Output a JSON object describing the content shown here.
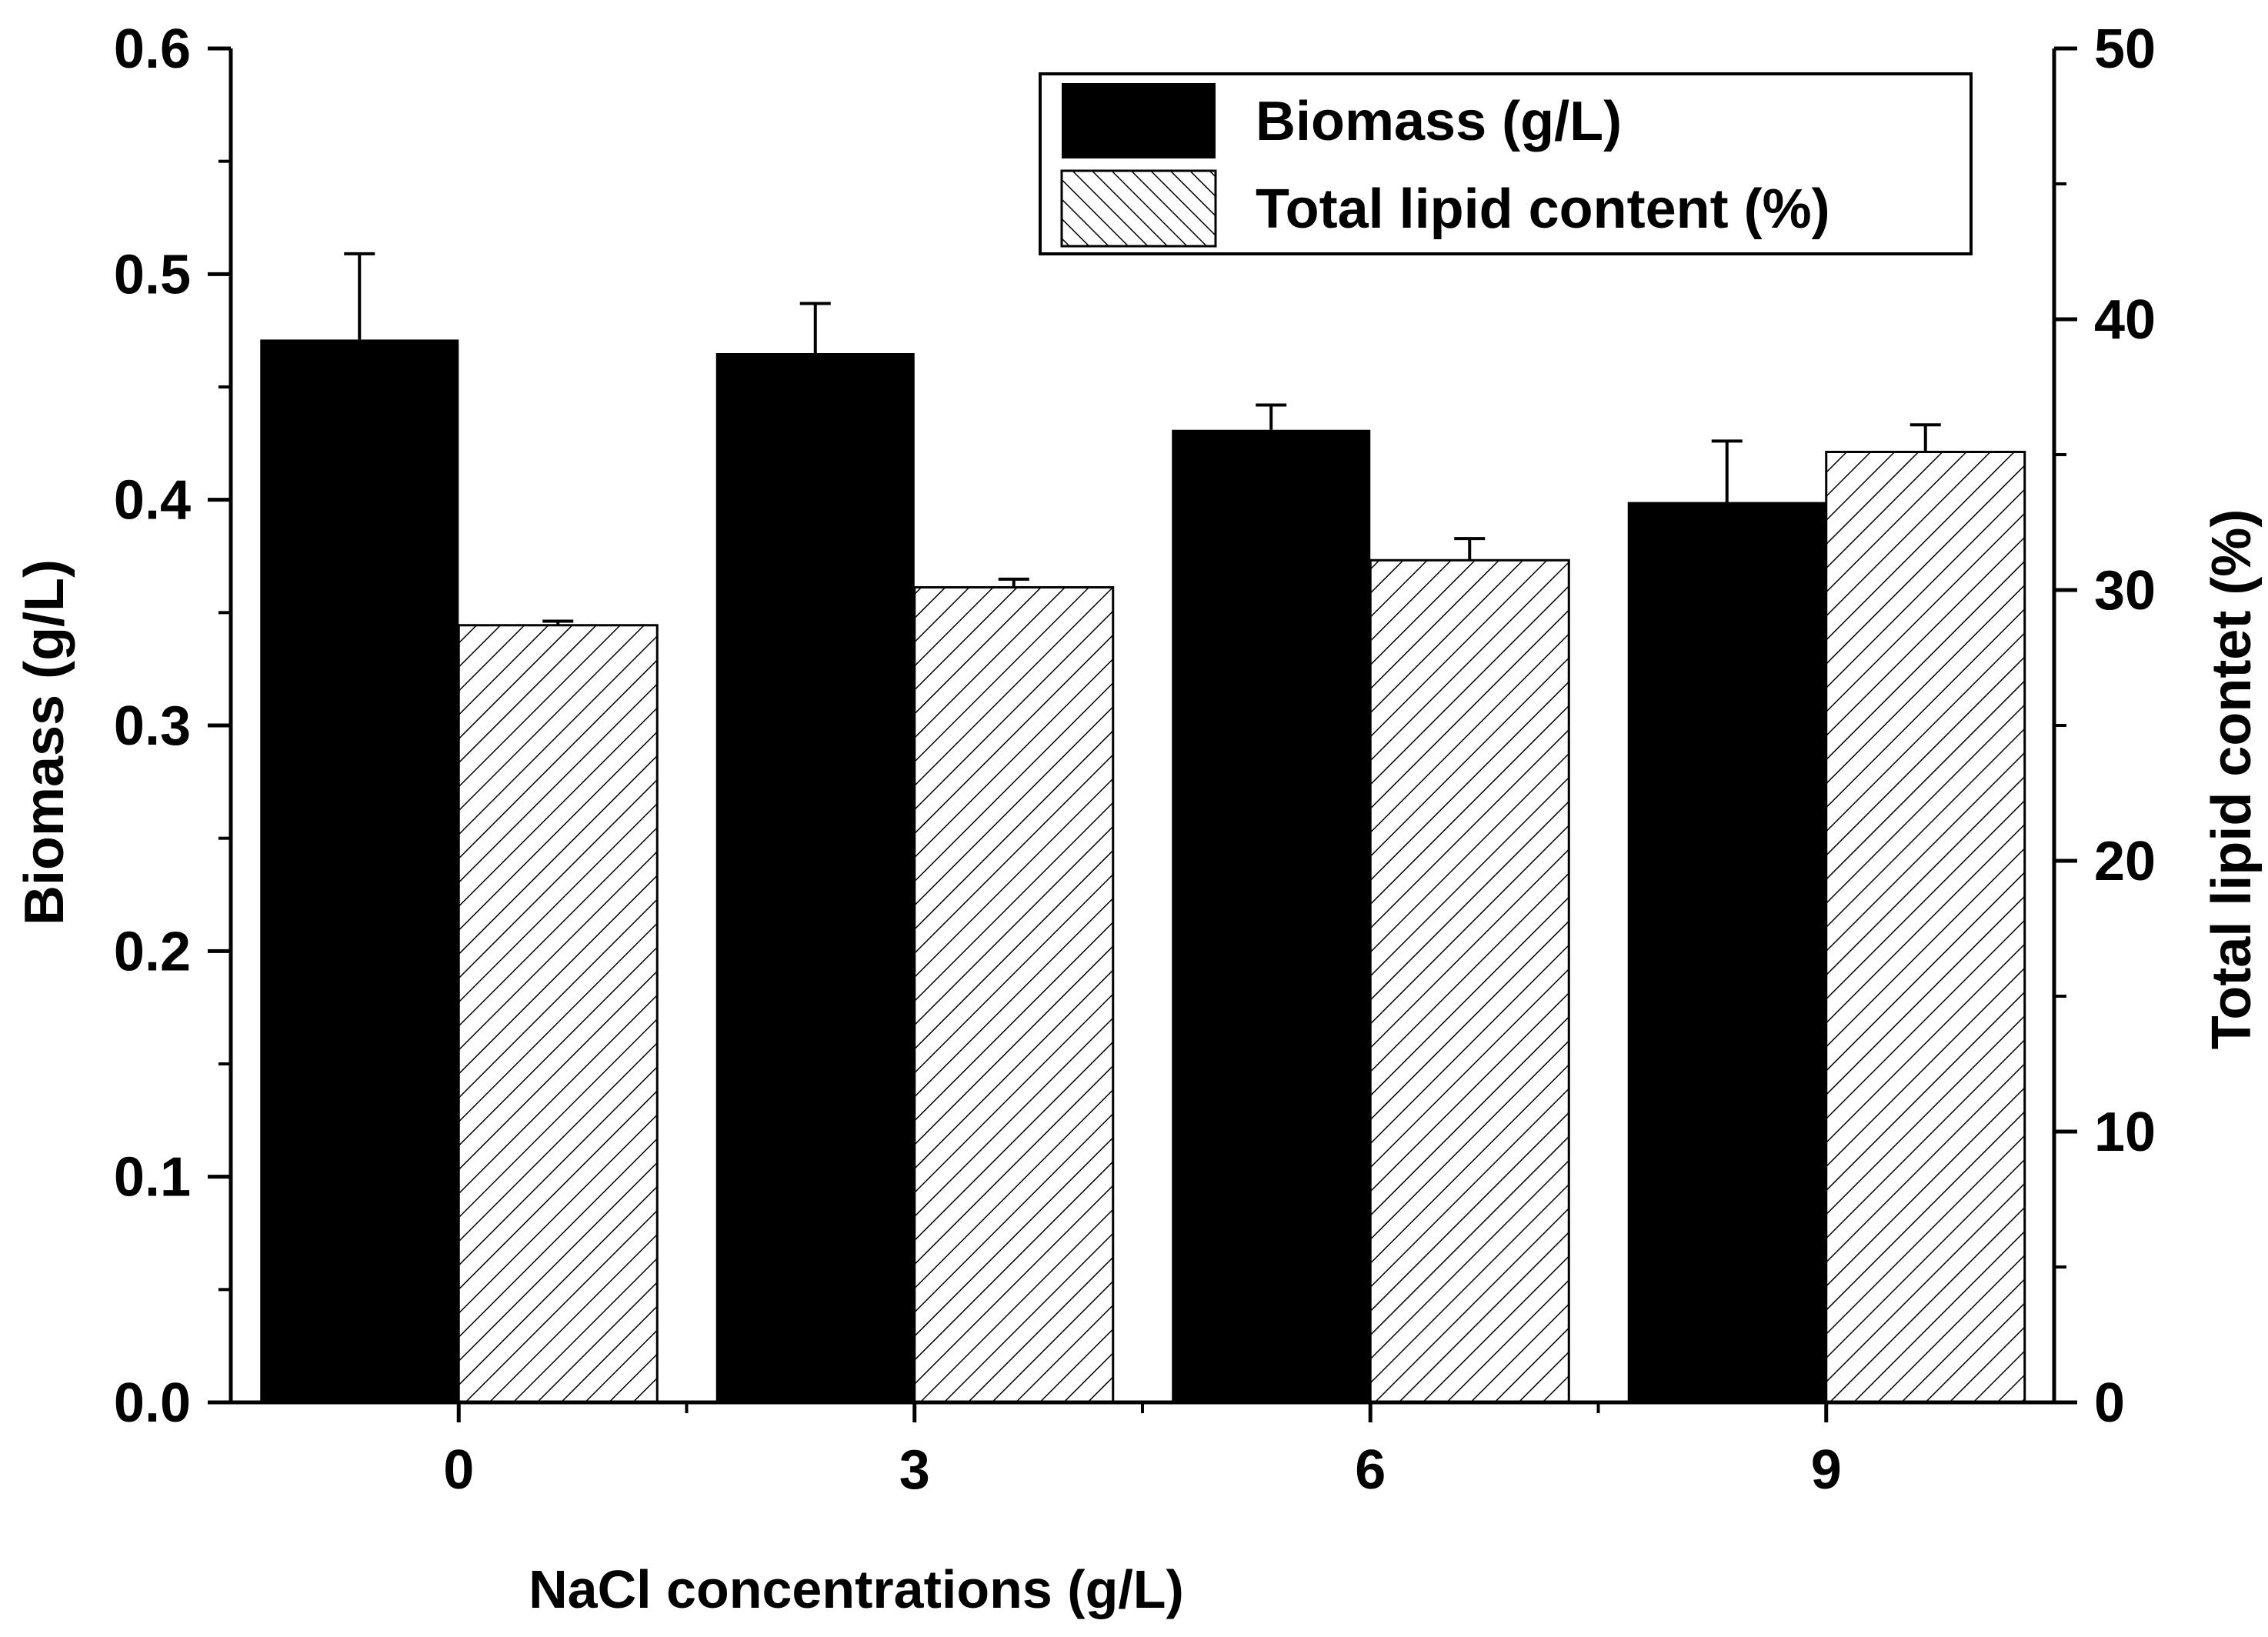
{
  "chart_data": {
    "type": "bar",
    "title": "",
    "xlabel": "NaCl concentrations (g/L)",
    "ylabel_left": "Biomass (g/L)",
    "ylabel_right": "Total lipid contet (%)",
    "categories": [
      "0",
      "3",
      "6",
      "9"
    ],
    "ylim_left": [
      0,
      0.6
    ],
    "ylim_right": [
      0,
      50
    ],
    "left_ticks": [
      "0.0",
      "0.1",
      "0.2",
      "0.3",
      "0.4",
      "0.5",
      "0.6"
    ],
    "right_ticks": [
      "0",
      "10",
      "20",
      "30",
      "40",
      "50"
    ],
    "grid": false,
    "legend_position": "top-right",
    "series": [
      {
        "name": "Biomass (g/L)",
        "axis": "left",
        "fill": "solid",
        "color": "#000000",
        "values": [
          0.471,
          0.465,
          0.431,
          0.399
        ],
        "errors": [
          0.038,
          0.022,
          0.011,
          0.027
        ]
      },
      {
        "name": "Total lipid content (%)",
        "axis": "right",
        "fill": "hatched",
        "color": "#000000",
        "values": [
          28.7,
          30.1,
          31.1,
          35.1
        ],
        "errors": [
          0.15,
          0.3,
          0.8,
          1.0
        ]
      }
    ]
  }
}
